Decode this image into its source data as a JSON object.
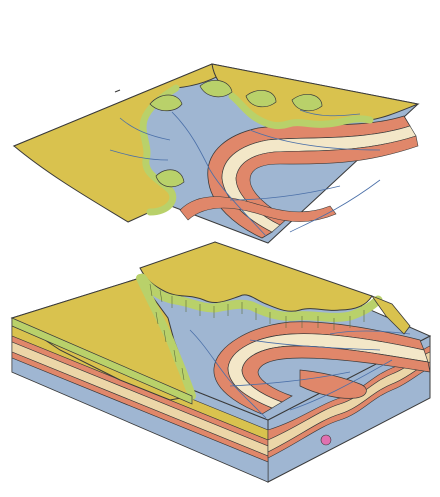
{
  "colors": {
    "background": "#ffffff",
    "plateau": "#d9c24e",
    "plateau_edge": "#b9d16a",
    "cliff_shadow": "#9fb85a",
    "shale_blue": "#9fb6d2",
    "red_bed": "#e0876a",
    "tan_bed": "#ecd6a8",
    "pale_bed": "#f3e7c8",
    "outline": "#3a3a3a",
    "stream": "#4a6fa8",
    "accent_pink": "#e070b0"
  },
  "panels": [
    {
      "kind": "map-view"
    },
    {
      "kind": "block-diagram"
    }
  ]
}
